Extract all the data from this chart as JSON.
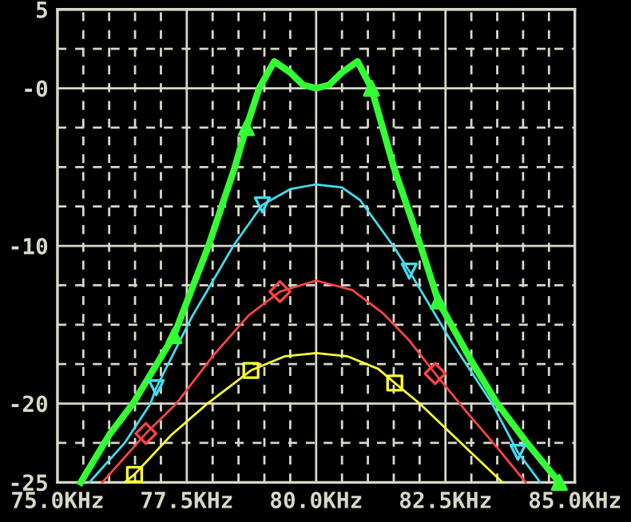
{
  "chart_data": {
    "type": "line",
    "xlim": [
      75,
      85
    ],
    "ylim": [
      -25,
      5
    ],
    "xticks": [
      {
        "value": 75,
        "label": "75.0KHz"
      },
      {
        "value": 75.5,
        "label": null
      },
      {
        "value": 76,
        "label": null
      },
      {
        "value": 76.5,
        "label": null
      },
      {
        "value": 77,
        "label": null
      },
      {
        "value": 77.5,
        "label": "77.5KHz"
      },
      {
        "value": 78,
        "label": null
      },
      {
        "value": 78.5,
        "label": null
      },
      {
        "value": 79,
        "label": null
      },
      {
        "value": 79.5,
        "label": null
      },
      {
        "value": 80,
        "label": "80.0KHz"
      },
      {
        "value": 80.5,
        "label": null
      },
      {
        "value": 81,
        "label": null
      },
      {
        "value": 81.5,
        "label": null
      },
      {
        "value": 82,
        "label": null
      },
      {
        "value": 82.5,
        "label": "82.5KHz"
      },
      {
        "value": 83,
        "label": null
      },
      {
        "value": 83.5,
        "label": null
      },
      {
        "value": 84,
        "label": null
      },
      {
        "value": 84.5,
        "label": null
      },
      {
        "value": 85,
        "label": "85.0KHz"
      }
    ],
    "yticks": [
      {
        "value": -25,
        "label": "-25"
      },
      {
        "value": -22.5,
        "label": null
      },
      {
        "value": -20,
        "label": "-20"
      },
      {
        "value": -17.5,
        "label": null
      },
      {
        "value": -15,
        "label": null
      },
      {
        "value": -12.5,
        "label": null
      },
      {
        "value": -10,
        "label": "-10"
      },
      {
        "value": -7.5,
        "label": null
      },
      {
        "value": -5,
        "label": null
      },
      {
        "value": -2.5,
        "label": null
      },
      {
        "value": 0,
        "label": "-0"
      },
      {
        "value": 2.5,
        "label": null
      },
      {
        "value": 5,
        "label": "5"
      }
    ],
    "grid": true,
    "series": [
      {
        "color": "#33ff33",
        "x": [
          75.45,
          76.0,
          76.46,
          77.25,
          77.92,
          78.43,
          78.65,
          78.9,
          79.19,
          79.5,
          79.75,
          80.0,
          80.25,
          80.5,
          80.8,
          81.07,
          81.5,
          82.02,
          82.36,
          83.0,
          83.5,
          84.1,
          84.7
        ],
        "values": [
          -25,
          -22,
          -20,
          -15.7,
          -10,
          -5,
          -2.5,
          0,
          1.7,
          1.0,
          0.2,
          0,
          0.2,
          1.0,
          1.7,
          0,
          -5,
          -10,
          -13.5,
          -17.3,
          -20,
          -22.6,
          -25
        ]
      },
      {
        "color": "#44ddee",
        "x": [
          75.62,
          76.3,
          76.8,
          76.91,
          77.6,
          78.4,
          78.96,
          79.5,
          80.0,
          80.5,
          80.85,
          81.49,
          81.8,
          82.6,
          83.4,
          83.9,
          84.33
        ],
        "values": [
          -25,
          -22.5,
          -20,
          -19,
          -14.5,
          -10,
          -7.4,
          -6.4,
          -6.1,
          -6.3,
          -7.1,
          -10,
          -11.6,
          -16,
          -20,
          -23.1,
          -25
        ]
      },
      {
        "color": "#ff4444",
        "x": [
          75.87,
          76.71,
          77.3,
          78.0,
          78.7,
          79.3,
          80.0,
          80.7,
          81.3,
          81.8,
          82.3,
          82.9,
          83.5,
          84.05
        ],
        "values": [
          -25,
          -21.9,
          -20,
          -17,
          -14.4,
          -12.9,
          -12.2,
          -12.8,
          -14.3,
          -16,
          -18.1,
          -20.5,
          -22.8,
          -25
        ]
      },
      {
        "color": "#ffff33",
        "x": [
          76.3,
          76.49,
          77.2,
          77.9,
          78.74,
          79.4,
          80.0,
          80.6,
          81.2,
          81.52,
          82.0,
          82.8,
          83.6
        ],
        "values": [
          -25,
          -24.5,
          -22,
          -20,
          -17.9,
          -17,
          -16.8,
          -17.0,
          -17.8,
          -18.7,
          -20,
          -22.5,
          -25
        ]
      },
      {
        "type": "scatter",
        "color": "#33ff33",
        "marker": "triangle",
        "x": [
          77.25,
          78.65,
          81.07,
          82.36,
          84.7
        ],
        "values": [
          -15.7,
          -2.5,
          0,
          -13.5,
          -25
        ]
      },
      {
        "type": "scatter",
        "color": "#44ddee",
        "marker": "triangle_down",
        "x": [
          76.91,
          78.96,
          81.8,
          83.9
        ],
        "values": [
          -19,
          -7.4,
          -11.6,
          -23.1
        ]
      },
      {
        "type": "scatter",
        "color": "#ff4444",
        "marker": "diamond",
        "x": [
          76.71,
          79.3,
          82.3
        ],
        "values": [
          -21.9,
          -12.9,
          -18.1
        ]
      },
      {
        "type": "scatter",
        "color": "#ffff33",
        "marker": "square",
        "x": [
          76.49,
          78.74,
          81.52
        ],
        "values": [
          -24.5,
          -17.9,
          -18.7
        ]
      }
    ]
  }
}
